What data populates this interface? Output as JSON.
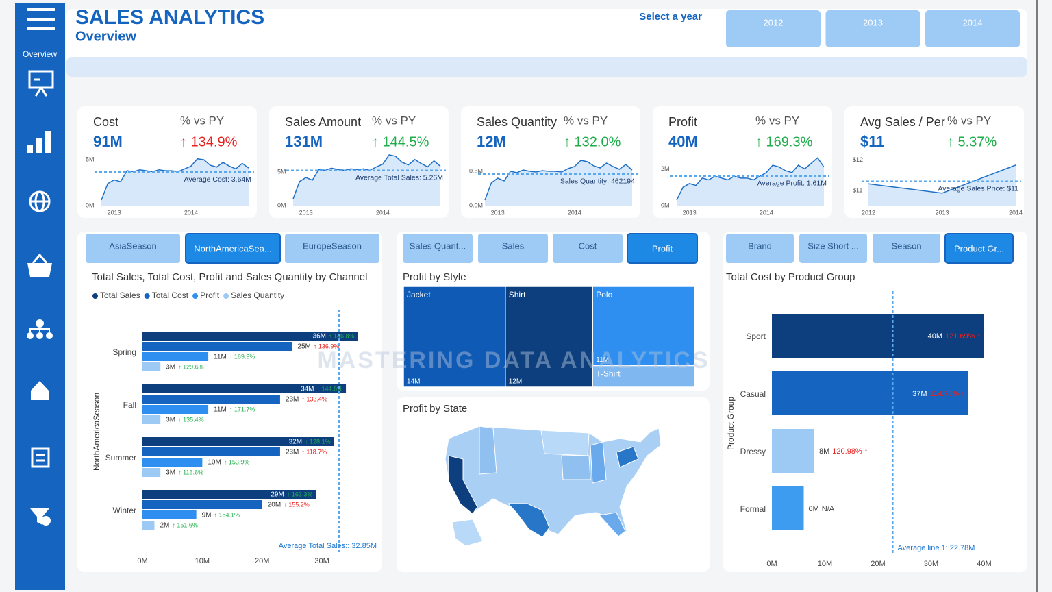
{
  "header": {
    "title": "SALES ANALYTICS",
    "subtitle": "Overview",
    "year_prompt": "Select a year",
    "year_buttons": [
      "2012",
      "2013",
      "2014"
    ]
  },
  "sidebar": {
    "label": "Overview"
  },
  "watermark": "MASTERING DATA ANALYTICS",
  "chart_data": [
    {
      "type": "kpi",
      "title": "Cost",
      "value": "91M",
      "compare_label": "% vs PY",
      "change": "↑ 134.9%",
      "change_color": "#e8221f",
      "values": [
        0.6,
        2.4,
        2.8,
        2.6,
        3.8,
        3.7,
        3.9,
        3.8,
        3.7,
        3.9,
        3.8,
        3.8,
        3.7,
        4.0,
        4.3,
        5.1,
        5.0,
        4.4,
        4.2,
        4.7,
        4.3,
        4.0,
        4.6,
        4.1
      ],
      "xlim": [
        0,
        23
      ],
      "xticks": [
        {
          "value": 2,
          "label": "2013"
        },
        {
          "value": 14,
          "label": "2014"
        }
      ],
      "ylim": [
        0,
        5.6
      ],
      "yticks": [
        {
          "value": 0,
          "label": "0M"
        },
        {
          "value": 5,
          "label": "5M"
        }
      ],
      "average": 3.64,
      "average_label": "Average Cost: 3.64M"
    },
    {
      "type": "kpi",
      "title": "Sales Amount",
      "value": "131M",
      "compare_label": "% vs PY",
      "change": "↑ 144.5%",
      "change_color": "#1fae4b",
      "values": [
        1.0,
        3.6,
        4.2,
        3.8,
        5.4,
        5.3,
        5.6,
        5.4,
        5.3,
        5.5,
        5.4,
        5.5,
        5.3,
        5.8,
        6.2,
        7.6,
        7.4,
        6.5,
        6.1,
        6.9,
        6.3,
        5.8,
        6.7,
        5.9
      ],
      "xlim": [
        0,
        23
      ],
      "xticks": [
        {
          "value": 2,
          "label": "2013"
        },
        {
          "value": 14,
          "label": "2014"
        }
      ],
      "ylim": [
        0,
        7.7
      ],
      "yticks": [
        {
          "value": 0,
          "label": "0M"
        },
        {
          "value": 5,
          "label": "5M"
        }
      ],
      "average": 5.26,
      "average_label": "Average Total Sales: 5.26M"
    },
    {
      "type": "kpi",
      "title": "Sales Quantity",
      "value": "12M",
      "compare_label": "% vs PY",
      "change": "↑ 132.0%",
      "change_color": "#1fae4b",
      "values": [
        0.08,
        0.33,
        0.4,
        0.36,
        0.5,
        0.48,
        0.52,
        0.5,
        0.49,
        0.51,
        0.5,
        0.5,
        0.49,
        0.54,
        0.57,
        0.66,
        0.64,
        0.58,
        0.55,
        0.62,
        0.57,
        0.53,
        0.6,
        0.52
      ],
      "xlim": [
        0,
        23
      ],
      "xticks": [
        {
          "value": 2,
          "label": "2013"
        },
        {
          "value": 14,
          "label": "2014"
        }
      ],
      "ylim": [
        0,
        0.75
      ],
      "yticks": [
        {
          "value": 0,
          "label": "0.0M"
        },
        {
          "value": 0.5,
          "label": "0.5M"
        }
      ],
      "average": 0.462194,
      "average_label": "Sales Quantity: 462194"
    },
    {
      "type": "kpi",
      "title": "Profit",
      "value": "40M",
      "compare_label": "% vs PY",
      "change": "↑ 169.3%",
      "change_color": "#1fae4b",
      "values": [
        0.3,
        1.0,
        1.2,
        1.1,
        1.5,
        1.4,
        1.6,
        1.5,
        1.4,
        1.6,
        1.5,
        1.5,
        1.4,
        1.6,
        1.8,
        2.2,
        2.1,
        1.9,
        1.8,
        2.2,
        2.0,
        2.3,
        2.6,
        2.1
      ],
      "xlim": [
        0,
        23
      ],
      "xticks": [
        {
          "value": 2,
          "label": "2013"
        },
        {
          "value": 14,
          "label": "2014"
        }
      ],
      "ylim": [
        0,
        2.8
      ],
      "yticks": [
        {
          "value": 0,
          "label": "0M"
        },
        {
          "value": 2,
          "label": "2M"
        }
      ],
      "average": 1.61,
      "average_label": "Average Profit: 1.61M"
    },
    {
      "type": "kpi",
      "title": "Avg Sales / Per",
      "value": "$11",
      "compare_label": "% vs PY",
      "change": "↑ 5.37%",
      "change_color": "#1fae4b",
      "x": [
        2012,
        2013,
        2014
      ],
      "values": [
        11.22,
        10.91,
        11.84
      ],
      "xlim": [
        2012,
        2014
      ],
      "xticks": [
        2012,
        2013,
        2014
      ],
      "ylim": [
        10.5,
        12.2
      ],
      "yticks": [
        {
          "value": 11,
          "label": "$11"
        },
        {
          "value": 12,
          "label": "$12"
        }
      ],
      "average": 11.3,
      "average_label": "Average Sales Price: $11"
    },
    {
      "type": "grouped_hbar",
      "tabs": [
        "AsiaSeason",
        "NorthAmericaSea...",
        "EuropeSeason"
      ],
      "active_tab": 1,
      "title": "Total Sales, Total Cost, Profit and Sales Quantity by Channel",
      "y_label": "NorthAmericaSeason",
      "categories": [
        "Spring",
        "Fall",
        "Summer",
        "Winter"
      ],
      "series": [
        {
          "name": "Total Sales",
          "color": "#0d3f7e",
          "values": [
            36,
            34,
            32,
            29
          ],
          "value_labels": [
            "36M",
            "34M",
            "32M",
            "29M"
          ],
          "changes": [
            "↑ 146.8%",
            "↑ 144.6%",
            "↑ 128.1%",
            "↑ 163.3%"
          ],
          "change_color": "#22b14c"
        },
        {
          "name": "Total Cost",
          "color": "#1565c0",
          "values": [
            25,
            23,
            23,
            20
          ],
          "value_labels": [
            "25M",
            "23M",
            "23M",
            "20M"
          ],
          "changes": [
            "↑ 136.9%",
            "↑ 133.4%",
            "↑ 118.7%",
            "↑ 155.2%"
          ],
          "change_color": "#e8221f"
        },
        {
          "name": "Profit",
          "color": "#2e8ff0",
          "values": [
            11,
            11,
            10,
            9
          ],
          "value_labels": [
            "11M",
            "11M",
            "10M",
            "9M"
          ],
          "changes": [
            "↑ 169.9%",
            "↑ 171.7%",
            "↑ 153.9%",
            "↑ 184.1%"
          ],
          "change_color": "#22b14c"
        },
        {
          "name": "Sales Quantity",
          "color": "#9ccaf5",
          "values": [
            3,
            3,
            3,
            2
          ],
          "value_labels": [
            "3M",
            "3M",
            "3M",
            "2M"
          ],
          "changes": [
            "↑ 129.6%",
            "↑ 135.4%",
            "↑ 116.6%",
            "↑ 151.6%"
          ],
          "change_color": "#22b14c"
        }
      ],
      "xlim": [
        0,
        38
      ],
      "xticks": [
        {
          "value": 0,
          "label": "0M"
        },
        {
          "value": 10,
          "label": "10M"
        },
        {
          "value": 20,
          "label": "20M"
        },
        {
          "value": 30,
          "label": "30M"
        }
      ],
      "average": 32.85,
      "average_label": "Average Total Sales:: 32.85M"
    },
    {
      "type": "treemap",
      "tabs": [
        "Sales Quant...",
        "Sales",
        "Cost",
        "Profit"
      ],
      "active_tab": 3,
      "title": "Profit by Style",
      "categories": [
        "Jacket",
        "Shirt",
        "Polo",
        "T-Shirt"
      ],
      "values": [
        14,
        12,
        11,
        3
      ],
      "value_labels": [
        "14M",
        "12M",
        "11M",
        null
      ],
      "colors": [
        "#0f5ab5",
        "#0d3f7e",
        "#2e8ff0",
        "#7fb8f0"
      ]
    },
    {
      "type": "map",
      "title": "Profit by State"
    },
    {
      "type": "hbar",
      "tabs": [
        "Brand",
        "Size Short ...",
        "Season",
        "Product Gr..."
      ],
      "active_tab": 3,
      "title": "Total Cost by Product Group",
      "y_label": "Product Group",
      "categories": [
        "Sport",
        "Casual",
        "Dressy",
        "Formal"
      ],
      "values": [
        40,
        37,
        8,
        6
      ],
      "value_labels": [
        "40M",
        "37M",
        "8M",
        "6M"
      ],
      "changes": [
        "121.69% ↑",
        "114.78% ↑",
        "120.98% ↑",
        "N/A"
      ],
      "change_colors": [
        "#e8221f",
        "#e8221f",
        "#e8221f",
        "#444444"
      ],
      "colors": [
        "#0d3f7e",
        "#1565c0",
        "#9ccaf5",
        "#3d9cf0"
      ],
      "xlim": [
        0,
        41
      ],
      "xticks": [
        {
          "value": 0,
          "label": "0M"
        },
        {
          "value": 10,
          "label": "10M"
        },
        {
          "value": 20,
          "label": "20M"
        },
        {
          "value": 30,
          "label": "30M"
        },
        {
          "value": 40,
          "label": "40M"
        }
      ],
      "average": 22.78,
      "average_label": "Average line 1: 22.78M"
    }
  ]
}
